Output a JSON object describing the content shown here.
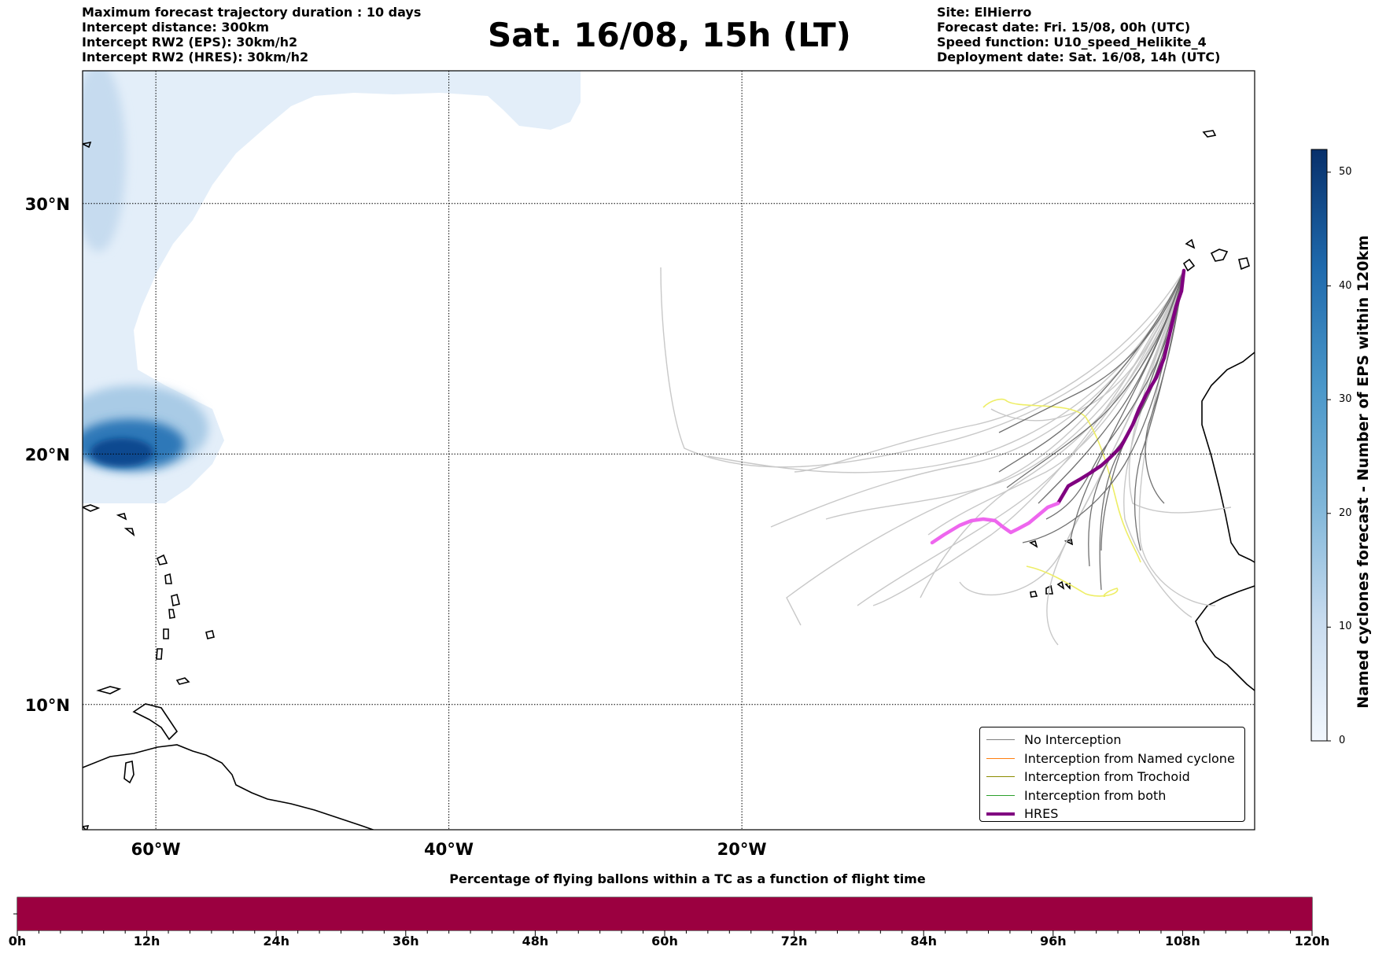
{
  "header": {
    "left_lines": [
      "Maximum forecast trajectory duration : 10 days",
      "Intercept distance: 300km",
      "Intercept RW2 (EPS):  30km/h2",
      "Intercept RW2 (HRES): 30km/h2"
    ],
    "title": "Sat. 16/08, 15h (LT)",
    "right_lines": [
      "Site: ElHierro",
      "Forecast date: Fri. 15/08, 00h (UTC)",
      "Speed function: U10_speed_Helikite_4",
      "Deployment date: Sat. 16/08, 14h (UTC)"
    ]
  },
  "map": {
    "lon_range": [
      -65,
      15
    ],
    "lat_range": [
      5,
      35.3
    ],
    "lon_ticks": [
      {
        "lon": -60,
        "label": "60°W"
      },
      {
        "lon": -40,
        "label": "40°W"
      },
      {
        "lon": -20,
        "label": "20°W"
      }
    ],
    "lat_ticks": [
      {
        "lat": 30,
        "label": "30°N"
      },
      {
        "lat": 20,
        "label": "20°N"
      },
      {
        "lat": 10,
        "label": "10°N"
      }
    ],
    "colors": {
      "no_interception": "#808080",
      "named_cyclone": "#ff7f0e",
      "trochoid": "#8b8b00",
      "both": "#2ca02c",
      "hres": "#800080",
      "hres_segment": "#ee66ee",
      "trochoid_track": "#eeee66"
    }
  },
  "legend": [
    {
      "label": "No Interception",
      "color": "#808080",
      "width": 1
    },
    {
      "label": "Interception from Named cyclone",
      "color": "#ff7f0e",
      "width": 1
    },
    {
      "label": "Interception from Trochoid",
      "color": "#8b8b00",
      "width": 1
    },
    {
      "label": "Interception from both",
      "color": "#2ca02c",
      "width": 1
    },
    {
      "label": "HRES",
      "color": "#800080",
      "width": 4
    }
  ],
  "colorbar": {
    "label": "Named cyclones forecast - Number of EPS within 120km",
    "range": [
      0,
      52
    ],
    "ticks": [
      "0",
      "10",
      "20",
      "30",
      "40",
      "50"
    ],
    "tick_values": [
      0,
      10,
      20,
      30,
      40,
      50
    ]
  },
  "progress_bar": {
    "title": "Percentage of flying ballons within a TC as a function of flight time",
    "color": "#9b0040",
    "fill_fraction": 1.0,
    "tick_labels": [
      "0h",
      "12h",
      "24h",
      "36h",
      "48h",
      "60h",
      "72h",
      "84h",
      "96h",
      "108h",
      "120h"
    ]
  }
}
